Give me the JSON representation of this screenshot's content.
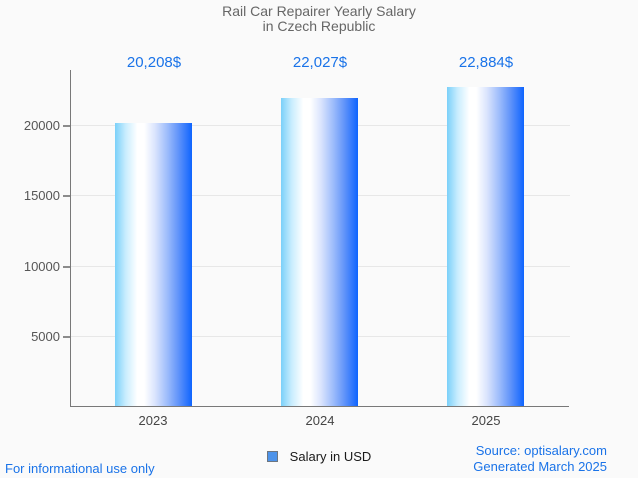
{
  "title": {
    "line1": "Rail Car Repairer Yearly Salary",
    "line2": "in Czech Republic"
  },
  "chart_data": {
    "type": "bar",
    "title": "Rail Car Repairer Yearly Salary in Czech Republic",
    "categories": [
      "2023",
      "2024",
      "2025"
    ],
    "series": [
      {
        "name": "Salary in USD",
        "values": [
          20208,
          22027,
          22884
        ]
      }
    ],
    "value_labels": [
      "20,208$",
      "22,027$",
      "22,884$"
    ],
    "xlabel": "",
    "ylabel": "",
    "ylim": [
      0,
      24000
    ],
    "yticks": [
      5000,
      10000,
      15000,
      20000
    ],
    "grid": true,
    "legend_position": "bottom"
  },
  "y_axis": {
    "tick_20000": "20000",
    "tick_15000": "15000",
    "tick_10000": "10000",
    "tick_5000": "5000"
  },
  "legend": {
    "label": "Salary in USD"
  },
  "footer": {
    "left": "For informational use only",
    "source": "Source: optisalary.com",
    "generated": "Generated March 2025"
  },
  "colors": {
    "accent": "#1a73e8",
    "title_text": "#666666",
    "bar_left": "#7ad0f9",
    "bar_right": "#0e64fe",
    "axis_line": "#787878",
    "grid_line": "#e7e7e7",
    "legend_swatch": "#4d93ea"
  }
}
